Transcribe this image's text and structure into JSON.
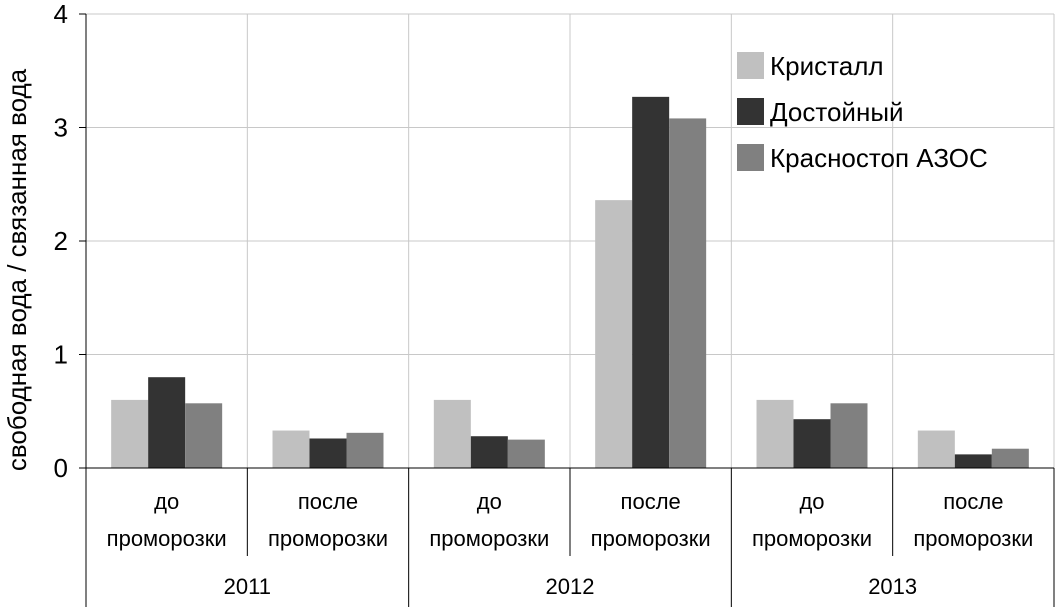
{
  "chart_data": {
    "type": "bar",
    "ylabel": "свободная вода / связанная вода",
    "ylim": [
      0,
      4
    ],
    "yticks": [
      0,
      1,
      2,
      3,
      4
    ],
    "grid": true,
    "legend_position": "top-right",
    "categories": [
      {
        "line1": "до",
        "line2": "проморозки"
      },
      {
        "line1": "после",
        "line2": "проморозки"
      },
      {
        "line1": "до",
        "line2": "проморозки"
      },
      {
        "line1": "после",
        "line2": "проморозки"
      },
      {
        "line1": "до",
        "line2": "проморозки"
      },
      {
        "line1": "после",
        "line2": "проморозки"
      }
    ],
    "groups": [
      {
        "label": "2011",
        "span": [
          0,
          1
        ]
      },
      {
        "label": "2012",
        "span": [
          2,
          3
        ]
      },
      {
        "label": "2013",
        "span": [
          4,
          5
        ]
      }
    ],
    "series": [
      {
        "name": "Кристалл",
        "color": "#c0c0c0",
        "values": [
          0.6,
          0.33,
          0.6,
          2.36,
          0.6,
          0.33
        ]
      },
      {
        "name": "Достойный",
        "color": "#333333",
        "values": [
          0.8,
          0.26,
          0.28,
          3.27,
          0.43,
          0.12
        ]
      },
      {
        "name": "Красностоп АЗОС",
        "color": "#808080",
        "values": [
          0.57,
          0.31,
          0.25,
          3.08,
          0.57,
          0.17
        ]
      }
    ]
  }
}
